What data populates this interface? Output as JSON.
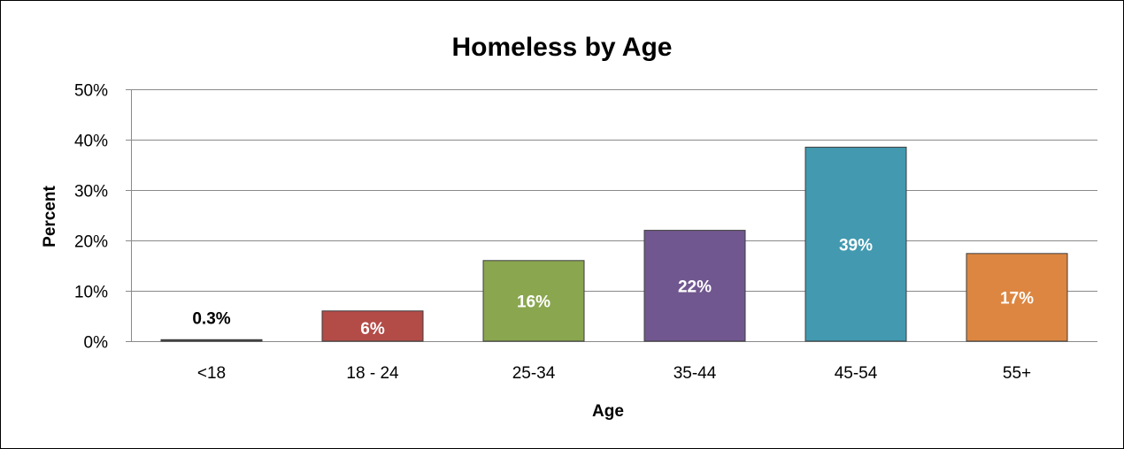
{
  "chart_data": {
    "type": "bar",
    "title": "Homeless by Age",
    "xlabel": "Age",
    "ylabel": "Percent",
    "categories": [
      "<18",
      "18 - 24",
      "25-34",
      "35-44",
      "45-54",
      "55+"
    ],
    "values": [
      0.3,
      6,
      16,
      22,
      38.5,
      17.4
    ],
    "data_labels": [
      "0.3%",
      "6%",
      "16%",
      "22%",
      "39%",
      "17%"
    ],
    "ylim": [
      0,
      50
    ],
    "yticks": [
      0,
      10,
      20,
      30,
      40,
      50
    ],
    "ytick_labels": [
      "0%",
      "10%",
      "20%",
      "30%",
      "40%",
      "50%"
    ],
    "grid": true,
    "legend": "none",
    "colors": [
      "#4a4a4a",
      "#b34b47",
      "#8aa64f",
      "#71578f",
      "#4299b0",
      "#dc8641"
    ],
    "data_label_colors": [
      "#000000",
      "#ffffff",
      "#ffffff",
      "#ffffff",
      "#ffffff",
      "#ffffff"
    ]
  }
}
